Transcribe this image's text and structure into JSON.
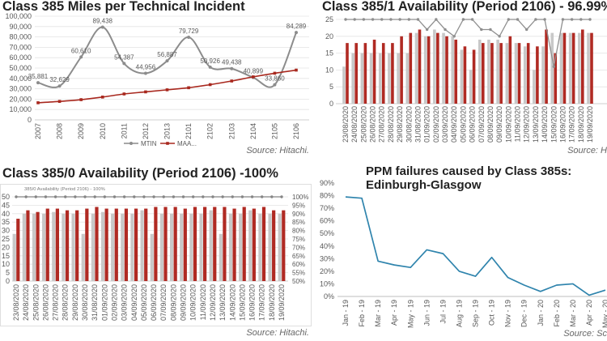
{
  "chart_data": [
    {
      "type": "line",
      "title": "Class 385 Miles per Technical Incident",
      "categories": [
        "2007",
        "2008",
        "2009",
        "2010",
        "2011",
        "2012",
        "2013",
        "2101",
        "2102",
        "2103",
        "2104",
        "2105",
        "2106"
      ],
      "series": [
        {
          "name": "MTIN",
          "color": "#8c8c8c",
          "marker": "circle",
          "values": [
            35881,
            32629,
            60610,
            89438,
            54387,
            44956,
            56887,
            79729,
            50926,
            49438,
            40899,
            33860,
            84289
          ],
          "data_labels": [
            "35,881",
            "32,629",
            "60,610",
            "89,438",
            "54,387",
            "44,956",
            "56,887",
            "79,729",
            "50,926",
            "49,438",
            "40,899",
            "33,860",
            "84,289"
          ]
        },
        {
          "name": "MAA...",
          "color": "#a8281e",
          "marker": "square",
          "values": [
            16500,
            17800,
            19500,
            22000,
            25000,
            27000,
            29000,
            31000,
            34000,
            37500,
            41500,
            45000,
            48000
          ]
        }
      ],
      "ylim": [
        0,
        100000
      ],
      "ystep": 10000,
      "yticks": [
        "0",
        "10,000",
        "20,000",
        "30,000",
        "40,000",
        "50,000",
        "60,000",
        "70,000",
        "80,000",
        "90,000",
        "100,000"
      ],
      "grid": true,
      "legend": "bottom",
      "source": "Source: Hitachi."
    },
    {
      "type": "bar",
      "title": "Class 385/1 Availability (Period 2106) - 96.99%",
      "categories": [
        "23/08/2020",
        "24/08/2020",
        "25/08/2020",
        "26/08/2020",
        "27/08/2020",
        "28/08/2020",
        "29/08/2020",
        "30/08/2020",
        "31/08/2020",
        "01/09/2020",
        "02/09/2020",
        "03/09/2020",
        "04/09/2020",
        "05/09/2020",
        "06/09/2020",
        "07/09/2020",
        "08/09/2020",
        "09/09/2020",
        "10/09/2020",
        "11/09/2020",
        "12/09/2020",
        "13/09/2020",
        "14/09/2020",
        "15/09/2020",
        "16/09/2020",
        "17/09/2020",
        "18/09/2020",
        "19/09/2020"
      ],
      "series": [
        {
          "type": "bar",
          "color": "#c8c8c8",
          "values": [
            11,
            15,
            15,
            15,
            15,
            15,
            15,
            15,
            21,
            20,
            22,
            21,
            20,
            16,
            10,
            19,
            19,
            19,
            18,
            18,
            17,
            10,
            17,
            21,
            21,
            21,
            21,
            21
          ]
        },
        {
          "type": "bar",
          "color": "#b02a23",
          "values": [
            18,
            18,
            18,
            19,
            18,
            18,
            20,
            21,
            22,
            20,
            21,
            20,
            19,
            17,
            16,
            18,
            18,
            18,
            20,
            18,
            18,
            17,
            22,
            15,
            21,
            21,
            22,
            21
          ]
        },
        {
          "type": "line",
          "color": "#8f8f8f",
          "values": [
            25,
            25,
            25,
            25,
            25,
            25,
            25,
            25,
            25,
            22,
            25,
            22,
            20,
            25,
            25,
            22,
            22,
            20,
            25,
            25,
            22,
            25,
            25,
            11,
            25,
            25,
            25,
            25
          ]
        }
      ],
      "ylim": [
        0,
        25
      ],
      "ystep": 5,
      "yticks": [
        "0",
        "5",
        "10",
        "15",
        "20",
        "25"
      ],
      "grid": true,
      "legend": "none",
      "source": "Source: H"
    },
    {
      "type": "bar",
      "title": "Class 385/0 Availability (Period 2106) -100%",
      "subtitle": "385/0 Availability (Period 2106) - 100%",
      "categories": [
        "23/08/2020",
        "24/08/2020",
        "25/08/2020",
        "26/08/2020",
        "27/08/2020",
        "28/08/2020",
        "29/08/2020",
        "30/08/2020",
        "31/08/2020",
        "01/09/2020",
        "02/09/2020",
        "03/09/2020",
        "04/09/2020",
        "05/09/2020",
        "06/09/2020",
        "07/09/2020",
        "08/09/2020",
        "09/09/2020",
        "10/09/2020",
        "11/09/2020",
        "12/09/2020",
        "13/09/2020",
        "14/09/2020",
        "15/09/2020",
        "16/09/2020",
        "17/09/2020",
        "18/09/2020",
        "19/09/2020"
      ],
      "series": [
        {
          "type": "bar",
          "color": "#c8c8c8",
          "values": [
            28,
            40,
            40,
            40,
            41,
            40,
            40,
            28,
            40,
            41,
            40,
            40,
            40,
            42,
            28,
            40,
            40,
            40,
            40,
            40,
            42,
            28,
            40,
            40,
            42,
            40,
            40,
            40
          ]
        },
        {
          "type": "bar",
          "color": "#b02a23",
          "values": [
            37,
            42,
            41,
            43,
            43,
            42,
            42,
            43,
            44,
            43,
            43,
            43,
            43,
            43,
            44,
            44,
            44,
            43,
            44,
            44,
            44,
            44,
            43,
            44,
            43,
            44,
            42,
            42
          ]
        },
        {
          "type": "line",
          "color": "#858585",
          "values": [
            50,
            50,
            50,
            50,
            50,
            50,
            50,
            50,
            50,
            50,
            50,
            50,
            50,
            50,
            50,
            50,
            50,
            50,
            50,
            50,
            50,
            50,
            50,
            50,
            50,
            50,
            50,
            50
          ]
        }
      ],
      "ylim": [
        0,
        50
      ],
      "ystep": 5,
      "yticks": [
        "0",
        "5",
        "10",
        "15",
        "20",
        "25",
        "30",
        "35",
        "40",
        "45",
        "50"
      ],
      "y2ticks": [
        "50%",
        "55%",
        "60%",
        "65%",
        "70%",
        "75%",
        "80%",
        "85%",
        "90%",
        "95%",
        "100%"
      ],
      "grid": true,
      "legend": "none",
      "source": "Source: Hitachi."
    },
    {
      "type": "line",
      "title": "PPM failures caused by Class 385s: Edinburgh-Glasgow",
      "categories": [
        "Jan - 19",
        "Feb - 19",
        "Mar - 19",
        "Apr - 19",
        "May - 19",
        "Jun - 19",
        "Jul - 19",
        "Aug - 19",
        "Sep - 19",
        "Oct - 19",
        "Nov - 19",
        "Dec - 19",
        "Jan - 20",
        "Feb - 20",
        "Mar - 20",
        "Apr - 20",
        "May - 20"
      ],
      "series": [
        {
          "color": "#2f84ad",
          "values": [
            79,
            78,
            28,
            25,
            23,
            37,
            34,
            20,
            16,
            31,
            15,
            9,
            4,
            9,
            10,
            1,
            5
          ]
        }
      ],
      "ylim": [
        0,
        90
      ],
      "ystep": 10,
      "yticks": [
        "0%",
        "10%",
        "20%",
        "30%",
        "40%",
        "50%",
        "60%",
        "70%",
        "80%",
        "90%"
      ],
      "grid": false,
      "legend": "none",
      "source": "Source: Sc"
    }
  ]
}
